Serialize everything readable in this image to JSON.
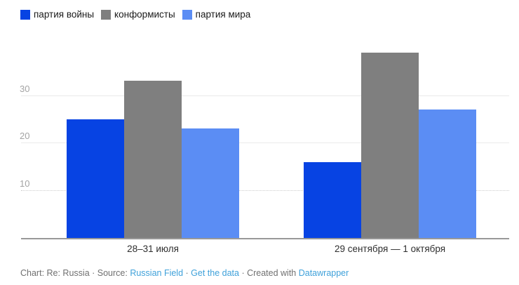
{
  "chart_data": {
    "type": "bar",
    "categories": [
      "28–31 июля",
      "29 сентября — 1 октября"
    ],
    "series": [
      {
        "name": "партия войны",
        "color": "#0743e3",
        "values": [
          25,
          16
        ]
      },
      {
        "name": "конформисты",
        "color": "#7f7f7f",
        "values": [
          33,
          39
        ]
      },
      {
        "name": "партия мира",
        "color": "#5b8df4",
        "values": [
          23,
          27
        ]
      }
    ],
    "y_ticks": [
      10,
      20,
      30
    ],
    "ylim": [
      0,
      40
    ],
    "grid": true,
    "legend_position": "top-left",
    "axis_line_color": "#999999"
  },
  "footer": {
    "text_before_source": "Chart: Re: Russia · Source: ",
    "link_source": "Russian Field",
    "sep1": " · ",
    "link_data": "Get the data",
    "sep2": " · Created with ",
    "link_datawrapper": "Datawrapper",
    "link_color": "#3fa1da"
  }
}
